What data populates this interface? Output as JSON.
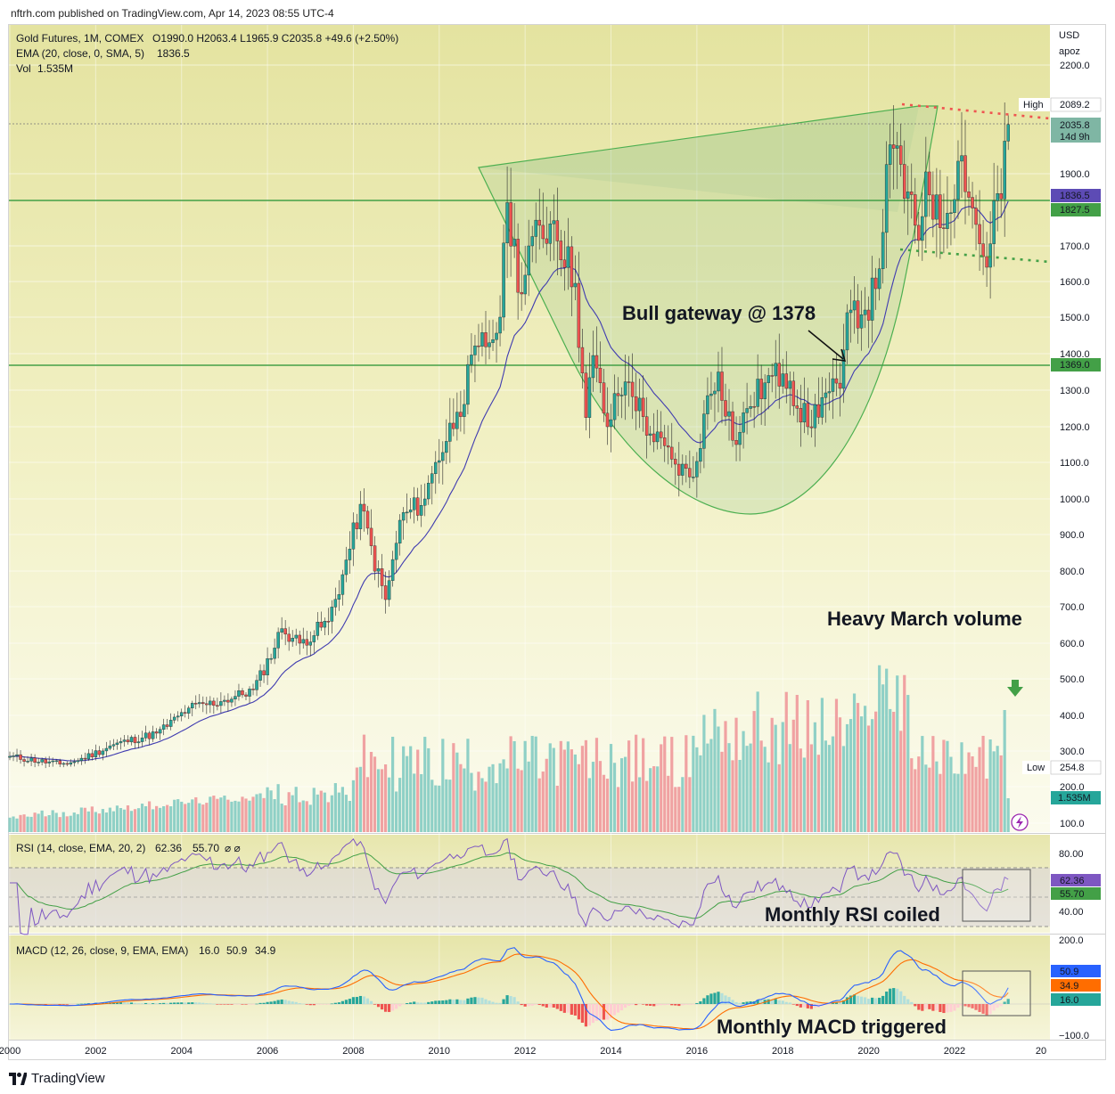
{
  "header": {
    "published": "nftrh.com published on TradingView.com, Apr 14, 2023 08:55 UTC-4"
  },
  "footer": {
    "brand": "TradingView"
  },
  "legend": {
    "title": "Gold Futures, 1M, COMEX",
    "ohlc": "O1990.0  H2063.4  L1965.9  C2035.8  +49.6 (+2.50%)",
    "ema_label": "EMA (20, close, 0, SMA, 5)",
    "ema_value": "1836.5",
    "vol_label": "Vol",
    "vol_value": "1.535M"
  },
  "price_axis": {
    "currency": "USD",
    "scale": "apoz",
    "ticks": [
      "2200.0",
      "1900.0",
      "1700.0",
      "1600.0",
      "1500.0",
      "1400.0",
      "1300.0",
      "1200.0",
      "1100.0",
      "1000.0",
      "900.0",
      "800.0",
      "700.0",
      "600.0",
      "500.0",
      "400.0",
      "300.0",
      "200.0",
      "100.0"
    ],
    "badges": {
      "high_label": "High",
      "high_value": "2089.2",
      "last_value": "2035.8",
      "last_countdown": "14d 9h",
      "ema_value": "1836.5",
      "line1_value": "1827.5",
      "line2_value": "1369.0",
      "low_label": "Low",
      "low_value": "254.8",
      "vol_value": "1.535M"
    }
  },
  "rsi": {
    "label": "RSI (14, close, EMA, 20, 2)",
    "v1": "62.36",
    "v2": "55.70",
    "na": "⌀ ⌀",
    "ticks": [
      "80.00",
      "40.00"
    ],
    "badge1": "62.36",
    "badge2": "55.70"
  },
  "macd": {
    "label": "MACD (12, 26, close, 9, EMA, EMA)",
    "v_hist": "16.0",
    "v_macd": "50.9",
    "v_signal": "34.9",
    "ticks": [
      "200.0",
      "−100.0"
    ],
    "badge_macd": "50.9",
    "badge_signal": "34.9",
    "badge_hist": "16.0"
  },
  "time_axis": [
    "2000",
    "2002",
    "2004",
    "2006",
    "2008",
    "2010",
    "2012",
    "2014",
    "2016",
    "2018",
    "2020",
    "2022",
    "20"
  ],
  "annotations": {
    "bull_gateway": "Bull gateway @ 1378",
    "heavy_volume": "Heavy March volume",
    "rsi_coiled": "Monthly RSI coiled",
    "macd_triggered": "Monthly MACD triggered"
  },
  "colors": {
    "up": "#26a69a",
    "down": "#ef5350",
    "ema": "#3f3bb0",
    "rsi": "#7e57c2",
    "rsi_ma": "#43a047",
    "macd": "#2962ff",
    "signal": "#ff6d00",
    "cup": "#4caf50",
    "hline": "#43a047",
    "dotted_red": "#ef5350",
    "dotted_green": "#43a047"
  },
  "chart_data": {
    "type": "candlestick",
    "title": "Gold Futures, 1M, COMEX",
    "interval": "monthly",
    "x_range": [
      "2000-01",
      "2023-04"
    ],
    "y_scale": "log",
    "y_axis_ticks": [
      100,
      200,
      300,
      400,
      500,
      600,
      700,
      800,
      900,
      1000,
      1100,
      1200,
      1300,
      1400,
      1500,
      1600,
      1700,
      1900,
      2200
    ],
    "keyframes_close": [
      [
        "2000-01",
        285
      ],
      [
        "2001-03",
        263
      ],
      [
        "2001-07",
        270
      ],
      [
        "2002-06",
        318
      ],
      [
        "2003-06",
        350
      ],
      [
        "2004-03",
        420
      ],
      [
        "2004-12",
        438
      ],
      [
        "2005-09",
        470
      ],
      [
        "2006-05",
        640
      ],
      [
        "2006-10",
        600
      ],
      [
        "2007-06",
        660
      ],
      [
        "2007-10",
        790
      ],
      [
        "2008-03",
        985
      ],
      [
        "2008-10",
        720
      ],
      [
        "2009-02",
        940
      ],
      [
        "2009-09",
        1000
      ],
      [
        "2009-12",
        1100
      ],
      [
        "2010-06",
        1240
      ],
      [
        "2010-12",
        1420
      ],
      [
        "2011-03",
        1430
      ],
      [
        "2011-06",
        1500
      ],
      [
        "2011-08",
        1820
      ],
      [
        "2011-12",
        1565
      ],
      [
        "2012-02",
        1700
      ],
      [
        "2012-09",
        1770
      ],
      [
        "2013-03",
        1595
      ],
      [
        "2013-06",
        1225
      ],
      [
        "2013-08",
        1395
      ],
      [
        "2013-12",
        1200
      ],
      [
        "2014-03",
        1285
      ],
      [
        "2014-06",
        1322
      ],
      [
        "2014-12",
        1180
      ],
      [
        "2015-07",
        1095
      ],
      [
        "2015-11",
        1060
      ],
      [
        "2015-12",
        1060
      ],
      [
        "2016-03",
        1235
      ],
      [
        "2016-07",
        1350
      ],
      [
        "2016-12",
        1150
      ],
      [
        "2017-03",
        1250
      ],
      [
        "2017-08",
        1320
      ],
      [
        "2018-01",
        1345
      ],
      [
        "2018-03",
        1325
      ],
      [
        "2018-08",
        1200
      ],
      [
        "2018-12",
        1280
      ],
      [
        "2019-05",
        1305
      ],
      [
        "2019-06",
        1410
      ],
      [
        "2019-08",
        1520
      ],
      [
        "2019-12",
        1520
      ],
      [
        "2020-03",
        1580
      ],
      [
        "2020-07",
        1980
      ],
      [
        "2020-08",
        1970
      ],
      [
        "2021-03",
        1715
      ],
      [
        "2021-05",
        1905
      ],
      [
        "2021-09",
        1750
      ],
      [
        "2022-03",
        1950
      ],
      [
        "2022-09",
        1670
      ],
      [
        "2022-10",
        1640
      ],
      [
        "2022-12",
        1825
      ],
      [
        "2023-02",
        1830
      ],
      [
        "2023-03",
        1990
      ],
      [
        "2023-04",
        2035.8
      ]
    ],
    "last_bar": {
      "open": 1990.0,
      "high": 2063.4,
      "low": 1965.9,
      "close": 2035.8,
      "change": 49.6,
      "change_pct": 2.5
    },
    "ema20_last": 1836.5,
    "horizontal_lines": [
      1827.5,
      1369.0
    ],
    "range_high": 2089.2,
    "range_low": 254.8,
    "volume_last": "1.535M",
    "rsi": {
      "last": 62.36,
      "ma_last": 55.7,
      "bands": [
        70,
        50,
        30
      ]
    },
    "macd": {
      "macd_last": 50.9,
      "signal_last": 34.9,
      "hist_last": 16.0
    }
  }
}
